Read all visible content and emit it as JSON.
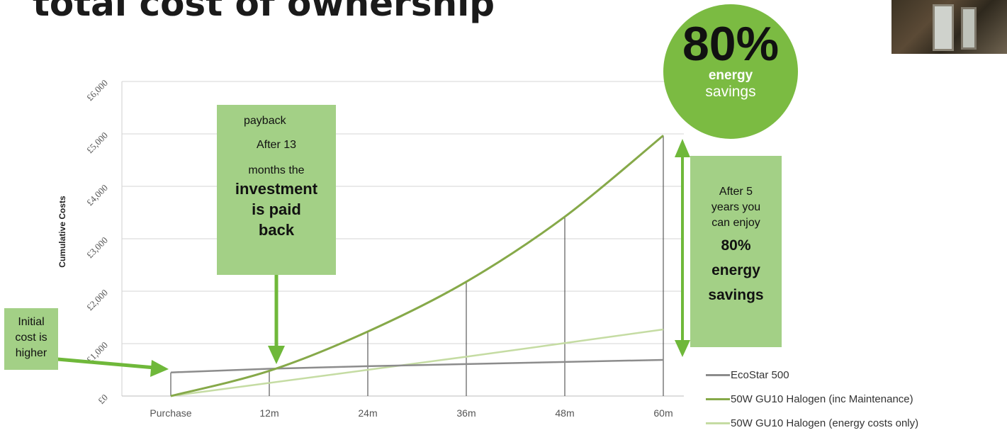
{
  "page": {
    "title": "total cost of ownership"
  },
  "colors": {
    "ecostar": "#8c8c8c",
    "halogen_maint": "#86a949",
    "halogen_energy": "#c5dca3",
    "accent": "#7bbb42",
    "callout": "#a3d086",
    "arrow": "#6fb83a"
  },
  "chart_data": {
    "type": "line",
    "x": [
      "Purchase",
      "12m",
      "24m",
      "36m",
      "48m",
      "60m"
    ],
    "ylabel": "Cumulative Costs",
    "ylim": [
      0,
      6000
    ],
    "yticks": [
      "£0",
      "£1,000",
      "£2,000",
      "£3,000",
      "£4,000",
      "£5,000",
      "£6,000"
    ],
    "grid": true,
    "legend_position": "bottom-right",
    "series": [
      {
        "name": "EcoStar 500",
        "values": [
          450,
          520,
          570,
          610,
          650,
          690
        ]
      },
      {
        "name": "50W GU10 Halogen (inc Maintenance)",
        "values": [
          0,
          480,
          1230,
          2180,
          3420,
          4970
        ]
      },
      {
        "name": "50W GU10 Halogen (energy costs only)",
        "values": [
          0,
          250,
          500,
          750,
          1010,
          1270
        ]
      }
    ]
  },
  "callouts": {
    "initial": {
      "lines": [
        "Initial",
        "cost is",
        "higher"
      ]
    },
    "payback": {
      "heading": "payback",
      "lines": [
        "After 13",
        "months the"
      ],
      "emphasis": [
        "investment",
        "is paid",
        "back"
      ]
    },
    "savings": {
      "lines": [
        "After 5",
        "years you",
        "can enjoy"
      ],
      "emphasis": [
        "80%",
        "energy",
        "savings"
      ]
    }
  },
  "badge": {
    "percent": "80%",
    "line1": "energy",
    "line2": "savings"
  },
  "legend": {
    "items": [
      "EcoStar 500",
      "50W GU10 Halogen (inc Maintenance)",
      "50W GU10 Halogen (energy costs only)"
    ]
  }
}
